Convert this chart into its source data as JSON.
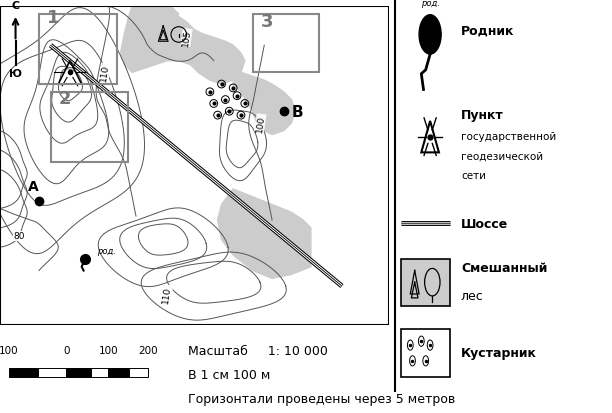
{
  "bg_color": "#ffffff",
  "map_bg": "#ffffff",
  "title_scale": "Масштаб     1: 10 000",
  "title_cm": "В 1 см 100 м",
  "title_horiz": "Горизонтали проведены через 5 метров",
  "compass_N": "С",
  "compass_S": "Ю",
  "scale_labels": [
    "100",
    "0",
    "100",
    "200"
  ],
  "map_border_color": "#000000",
  "legend_line_color": "#000000",
  "box_color": "#888888",
  "contour_color": "#555555",
  "shade_color": "#cccccc",
  "road_color": "#000000"
}
